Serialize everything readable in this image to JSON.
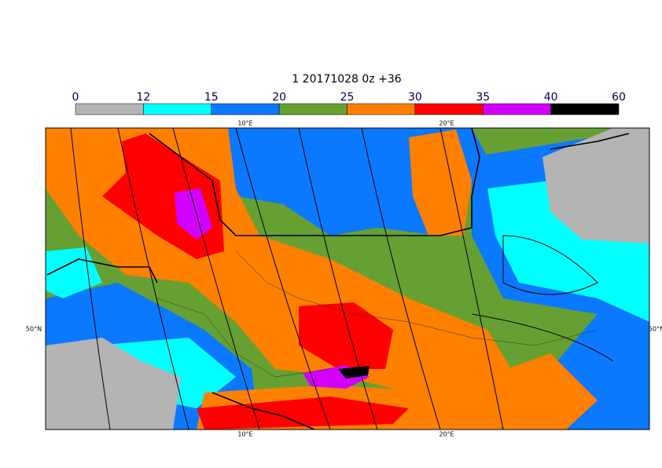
{
  "map": {
    "title": "1 20171028 0z +36",
    "colorbar": {
      "levels": [
        0,
        12,
        15,
        20,
        25,
        30,
        35,
        40,
        60
      ],
      "colors": [
        "#b4b4b4",
        "#00ffff",
        "#0a78ff",
        "#66a032",
        "#ff8000",
        "#ff0000",
        "#d200ff",
        "#000000"
      ]
    },
    "lon_labels": [
      "10°E",
      "20°E"
    ],
    "lat_labels": [
      "50°N"
    ]
  }
}
